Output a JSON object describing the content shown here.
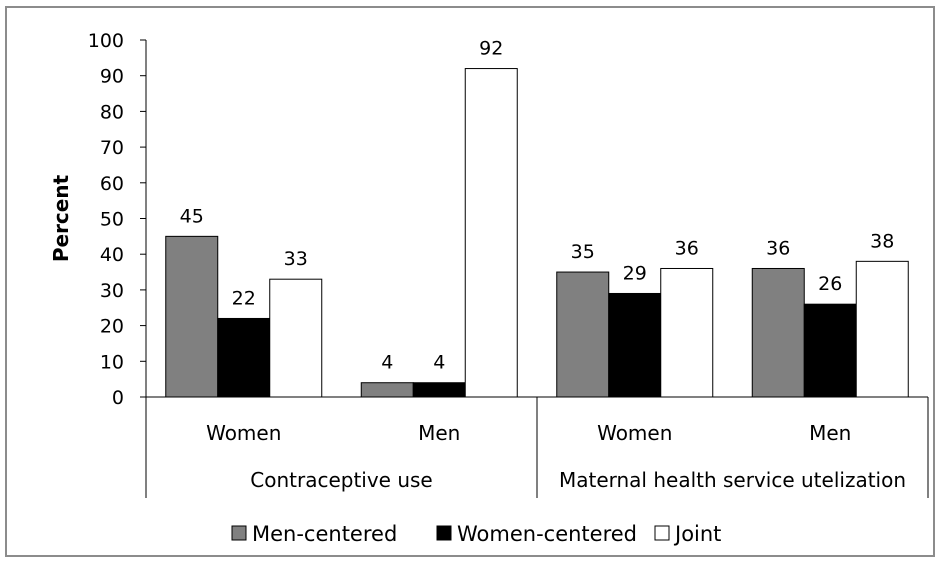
{
  "chart_data": {
    "type": "bar",
    "ylabel": "Percent",
    "ylim": [
      0,
      100
    ],
    "yticks": [
      0,
      10,
      20,
      30,
      40,
      50,
      60,
      70,
      80,
      90,
      100
    ],
    "groups": [
      {
        "label": "Contraceptive use",
        "categories": [
          "Women",
          "Men"
        ]
      },
      {
        "label": "Maternal health service utelization",
        "categories": [
          "Women",
          "Men"
        ]
      }
    ],
    "categories": [
      "Women",
      "Men",
      "Women",
      "Men"
    ],
    "series": [
      {
        "name": "Men-centered",
        "color": "#808080",
        "values": [
          45,
          4,
          35,
          36
        ]
      },
      {
        "name": "Women-centered",
        "color": "#000000",
        "values": [
          22,
          4,
          29,
          26
        ]
      },
      {
        "name": "Joint",
        "color": "#ffffff",
        "values": [
          33,
          92,
          36,
          38
        ]
      }
    ],
    "legend_position": "bottom",
    "grid": false
  }
}
